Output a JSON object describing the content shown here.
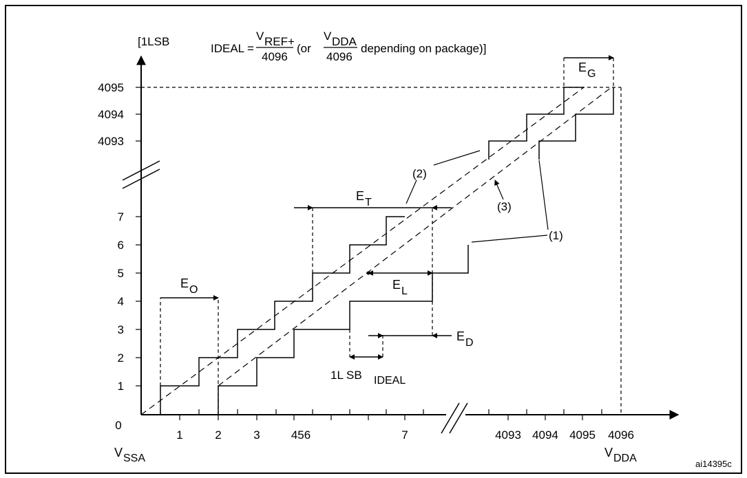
{
  "formula": {
    "prefix": "[1LSB",
    "ideal_sub": "IDEAL",
    "equals": "=",
    "vref": "V",
    "vref_sub": "REF+",
    "denominator_1": "4096",
    "or_text": "(or",
    "vdda": "V",
    "vdda_sub": "DDA",
    "denominator_2": "4096",
    "suffix": "depending on package)]"
  },
  "y_axis": {
    "ticks": [
      "1",
      "2",
      "3",
      "4",
      "5",
      "6",
      "7",
      "4093",
      "4094",
      "4095"
    ]
  },
  "x_axis": {
    "origin": "0",
    "ticks": [
      "1",
      "2",
      "3",
      "456",
      "7",
      "4093",
      "4094",
      "4095",
      "4096"
    ],
    "start_label": "V",
    "start_label_sub": "SSA",
    "end_label": "V",
    "end_label_sub": "DDA"
  },
  "errors": {
    "offset": {
      "letter": "E",
      "sub": "O"
    },
    "total": {
      "letter": "E",
      "sub": "T"
    },
    "linearity": {
      "letter": "E",
      "sub": "L"
    },
    "differential": {
      "letter": "E",
      "sub": "D"
    },
    "gain": {
      "letter": "E",
      "sub": "G"
    }
  },
  "lsb_label": {
    "main": "1L SB",
    "sub": "IDEAL"
  },
  "callouts": {
    "actual": "(1)",
    "ideal": "(2)",
    "end_point": "(3)"
  },
  "figure_code": "ai14395c"
}
